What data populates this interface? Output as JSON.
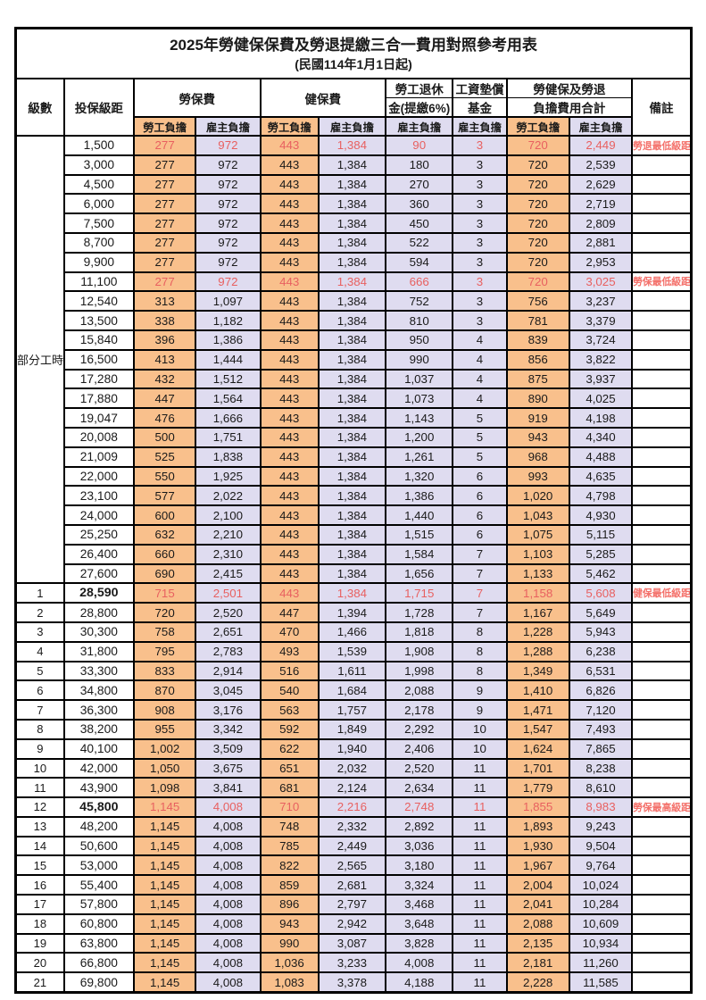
{
  "title": "2025年勞健保保費及勞退提繳三合一費用對照參考用表",
  "subtitle": "(民國114年1月1日起)",
  "colors": {
    "employee_bg": "#f9c08c",
    "employer_bg": "#dfdcf0",
    "highlight_text": "#e86060",
    "remark_text": "#f4706a",
    "grid": "#000000"
  },
  "header": {
    "level": "級數",
    "bracket": "投保級距",
    "labor_ins": "勞保費",
    "health_ins": "健保費",
    "pension_line1": "勞工退休",
    "pension_line2": "金(提繳6%)",
    "wage_fund_line1": "工資墊償",
    "wage_fund_line2": "基金",
    "total_line1": "勞健保及勞退",
    "total_line2": "負擔費用合計",
    "employee_share": "勞工負擔",
    "employer_share": "雇主負擔",
    "remark": "備註"
  },
  "table": {
    "part_time": {
      "label": "部分工時",
      "rows": 23
    },
    "rows": [
      {
        "lv": "",
        "br": "1,500",
        "cells": [
          "277",
          "972",
          "443",
          "1,384",
          "90",
          "3",
          "720",
          "2,449"
        ],
        "rm": "勞退最低級距",
        "red": true,
        "bold": false
      },
      {
        "lv": "",
        "br": "3,000",
        "cells": [
          "277",
          "972",
          "443",
          "1,384",
          "180",
          "3",
          "720",
          "2,539"
        ],
        "rm": "",
        "red": false,
        "bold": false
      },
      {
        "lv": "",
        "br": "4,500",
        "cells": [
          "277",
          "972",
          "443",
          "1,384",
          "270",
          "3",
          "720",
          "2,629"
        ],
        "rm": "",
        "red": false,
        "bold": false
      },
      {
        "lv": "",
        "br": "6,000",
        "cells": [
          "277",
          "972",
          "443",
          "1,384",
          "360",
          "3",
          "720",
          "2,719"
        ],
        "rm": "",
        "red": false,
        "bold": false
      },
      {
        "lv": "",
        "br": "7,500",
        "cells": [
          "277",
          "972",
          "443",
          "1,384",
          "450",
          "3",
          "720",
          "2,809"
        ],
        "rm": "",
        "red": false,
        "bold": false
      },
      {
        "lv": "",
        "br": "8,700",
        "cells": [
          "277",
          "972",
          "443",
          "1,384",
          "522",
          "3",
          "720",
          "2,881"
        ],
        "rm": "",
        "red": false,
        "bold": false
      },
      {
        "lv": "",
        "br": "9,900",
        "cells": [
          "277",
          "972",
          "443",
          "1,384",
          "594",
          "3",
          "720",
          "2,953"
        ],
        "rm": "",
        "red": false,
        "bold": false
      },
      {
        "lv": "",
        "br": "11,100",
        "cells": [
          "277",
          "972",
          "443",
          "1,384",
          "666",
          "3",
          "720",
          "3,025"
        ],
        "rm": "勞保最低級距",
        "red": true,
        "bold": false
      },
      {
        "lv": "",
        "br": "12,540",
        "cells": [
          "313",
          "1,097",
          "443",
          "1,384",
          "752",
          "3",
          "756",
          "3,237"
        ],
        "rm": "",
        "red": false,
        "bold": false
      },
      {
        "lv": "",
        "br": "13,500",
        "cells": [
          "338",
          "1,182",
          "443",
          "1,384",
          "810",
          "3",
          "781",
          "3,379"
        ],
        "rm": "",
        "red": false,
        "bold": false
      },
      {
        "lv": "",
        "br": "15,840",
        "cells": [
          "396",
          "1,386",
          "443",
          "1,384",
          "950",
          "4",
          "839",
          "3,724"
        ],
        "rm": "",
        "red": false,
        "bold": false
      },
      {
        "lv": "",
        "br": "16,500",
        "cells": [
          "413",
          "1,444",
          "443",
          "1,384",
          "990",
          "4",
          "856",
          "3,822"
        ],
        "rm": "",
        "red": false,
        "bold": false
      },
      {
        "lv": "",
        "br": "17,280",
        "cells": [
          "432",
          "1,512",
          "443",
          "1,384",
          "1,037",
          "4",
          "875",
          "3,937"
        ],
        "rm": "",
        "red": false,
        "bold": false
      },
      {
        "lv": "",
        "br": "17,880",
        "cells": [
          "447",
          "1,564",
          "443",
          "1,384",
          "1,073",
          "4",
          "890",
          "4,025"
        ],
        "rm": "",
        "red": false,
        "bold": false
      },
      {
        "lv": "",
        "br": "19,047",
        "cells": [
          "476",
          "1,666",
          "443",
          "1,384",
          "1,143",
          "5",
          "919",
          "4,198"
        ],
        "rm": "",
        "red": false,
        "bold": false
      },
      {
        "lv": "",
        "br": "20,008",
        "cells": [
          "500",
          "1,751",
          "443",
          "1,384",
          "1,200",
          "5",
          "943",
          "4,340"
        ],
        "rm": "",
        "red": false,
        "bold": false
      },
      {
        "lv": "",
        "br": "21,009",
        "cells": [
          "525",
          "1,838",
          "443",
          "1,384",
          "1,261",
          "5",
          "968",
          "4,488"
        ],
        "rm": "",
        "red": false,
        "bold": false
      },
      {
        "lv": "",
        "br": "22,000",
        "cells": [
          "550",
          "1,925",
          "443",
          "1,384",
          "1,320",
          "6",
          "993",
          "4,635"
        ],
        "rm": "",
        "red": false,
        "bold": false
      },
      {
        "lv": "",
        "br": "23,100",
        "cells": [
          "577",
          "2,022",
          "443",
          "1,384",
          "1,386",
          "6",
          "1,020",
          "4,798"
        ],
        "rm": "",
        "red": false,
        "bold": false
      },
      {
        "lv": "",
        "br": "24,000",
        "cells": [
          "600",
          "2,100",
          "443",
          "1,384",
          "1,440",
          "6",
          "1,043",
          "4,930"
        ],
        "rm": "",
        "red": false,
        "bold": false
      },
      {
        "lv": "",
        "br": "25,250",
        "cells": [
          "632",
          "2,210",
          "443",
          "1,384",
          "1,515",
          "6",
          "1,075",
          "5,115"
        ],
        "rm": "",
        "red": false,
        "bold": false
      },
      {
        "lv": "",
        "br": "26,400",
        "cells": [
          "660",
          "2,310",
          "443",
          "1,384",
          "1,584",
          "7",
          "1,103",
          "5,285"
        ],
        "rm": "",
        "red": false,
        "bold": false
      },
      {
        "lv": "",
        "br": "27,600",
        "cells": [
          "690",
          "2,415",
          "443",
          "1,384",
          "1,656",
          "7",
          "1,133",
          "5,462"
        ],
        "rm": "",
        "red": false,
        "bold": false
      },
      {
        "lv": "1",
        "br": "28,590",
        "cells": [
          "715",
          "2,501",
          "443",
          "1,384",
          "1,715",
          "7",
          "1,158",
          "5,608"
        ],
        "rm": "健保最低級距",
        "red": true,
        "bold": true
      },
      {
        "lv": "2",
        "br": "28,800",
        "cells": [
          "720",
          "2,520",
          "447",
          "1,394",
          "1,728",
          "7",
          "1,167",
          "5,649"
        ],
        "rm": "",
        "red": false,
        "bold": false
      },
      {
        "lv": "3",
        "br": "30,300",
        "cells": [
          "758",
          "2,651",
          "470",
          "1,466",
          "1,818",
          "8",
          "1,228",
          "5,943"
        ],
        "rm": "",
        "red": false,
        "bold": false
      },
      {
        "lv": "4",
        "br": "31,800",
        "cells": [
          "795",
          "2,783",
          "493",
          "1,539",
          "1,908",
          "8",
          "1,288",
          "6,238"
        ],
        "rm": "",
        "red": false,
        "bold": false
      },
      {
        "lv": "5",
        "br": "33,300",
        "cells": [
          "833",
          "2,914",
          "516",
          "1,611",
          "1,998",
          "8",
          "1,349",
          "6,531"
        ],
        "rm": "",
        "red": false,
        "bold": false
      },
      {
        "lv": "6",
        "br": "34,800",
        "cells": [
          "870",
          "3,045",
          "540",
          "1,684",
          "2,088",
          "9",
          "1,410",
          "6,826"
        ],
        "rm": "",
        "red": false,
        "bold": false
      },
      {
        "lv": "7",
        "br": "36,300",
        "cells": [
          "908",
          "3,176",
          "563",
          "1,757",
          "2,178",
          "9",
          "1,471",
          "7,120"
        ],
        "rm": "",
        "red": false,
        "bold": false
      },
      {
        "lv": "8",
        "br": "38,200",
        "cells": [
          "955",
          "3,342",
          "592",
          "1,849",
          "2,292",
          "10",
          "1,547",
          "7,493"
        ],
        "rm": "",
        "red": false,
        "bold": false
      },
      {
        "lv": "9",
        "br": "40,100",
        "cells": [
          "1,002",
          "3,509",
          "622",
          "1,940",
          "2,406",
          "10",
          "1,624",
          "7,865"
        ],
        "rm": "",
        "red": false,
        "bold": false
      },
      {
        "lv": "10",
        "br": "42,000",
        "cells": [
          "1,050",
          "3,675",
          "651",
          "2,032",
          "2,520",
          "11",
          "1,701",
          "8,238"
        ],
        "rm": "",
        "red": false,
        "bold": false
      },
      {
        "lv": "11",
        "br": "43,900",
        "cells": [
          "1,098",
          "3,841",
          "681",
          "2,124",
          "2,634",
          "11",
          "1,779",
          "8,610"
        ],
        "rm": "",
        "red": false,
        "bold": false
      },
      {
        "lv": "12",
        "br": "45,800",
        "cells": [
          "1,145",
          "4,008",
          "710",
          "2,216",
          "2,748",
          "11",
          "1,855",
          "8,983"
        ],
        "rm": "勞保最高級距",
        "red": true,
        "bold": true
      },
      {
        "lv": "13",
        "br": "48,200",
        "cells": [
          "1,145",
          "4,008",
          "748",
          "2,332",
          "2,892",
          "11",
          "1,893",
          "9,243"
        ],
        "rm": "",
        "red": false,
        "bold": false
      },
      {
        "lv": "14",
        "br": "50,600",
        "cells": [
          "1,145",
          "4,008",
          "785",
          "2,449",
          "3,036",
          "11",
          "1,930",
          "9,504"
        ],
        "rm": "",
        "red": false,
        "bold": false
      },
      {
        "lv": "15",
        "br": "53,000",
        "cells": [
          "1,145",
          "4,008",
          "822",
          "2,565",
          "3,180",
          "11",
          "1,967",
          "9,764"
        ],
        "rm": "",
        "red": false,
        "bold": false
      },
      {
        "lv": "16",
        "br": "55,400",
        "cells": [
          "1,145",
          "4,008",
          "859",
          "2,681",
          "3,324",
          "11",
          "2,004",
          "10,024"
        ],
        "rm": "",
        "red": false,
        "bold": false
      },
      {
        "lv": "17",
        "br": "57,800",
        "cells": [
          "1,145",
          "4,008",
          "896",
          "2,797",
          "3,468",
          "11",
          "2,041",
          "10,284"
        ],
        "rm": "",
        "red": false,
        "bold": false
      },
      {
        "lv": "18",
        "br": "60,800",
        "cells": [
          "1,145",
          "4,008",
          "943",
          "2,942",
          "3,648",
          "11",
          "2,088",
          "10,609"
        ],
        "rm": "",
        "red": false,
        "bold": false
      },
      {
        "lv": "19",
        "br": "63,800",
        "cells": [
          "1,145",
          "4,008",
          "990",
          "3,087",
          "3,828",
          "11",
          "2,135",
          "10,934"
        ],
        "rm": "",
        "red": false,
        "bold": false
      },
      {
        "lv": "20",
        "br": "66,800",
        "cells": [
          "1,145",
          "4,008",
          "1,036",
          "3,233",
          "4,008",
          "11",
          "2,181",
          "11,260"
        ],
        "rm": "",
        "red": false,
        "bold": false
      },
      {
        "lv": "21",
        "br": "69,800",
        "cells": [
          "1,145",
          "4,008",
          "1,083",
          "3,378",
          "4,188",
          "11",
          "2,228",
          "11,585"
        ],
        "rm": "",
        "red": false,
        "bold": false
      }
    ]
  }
}
